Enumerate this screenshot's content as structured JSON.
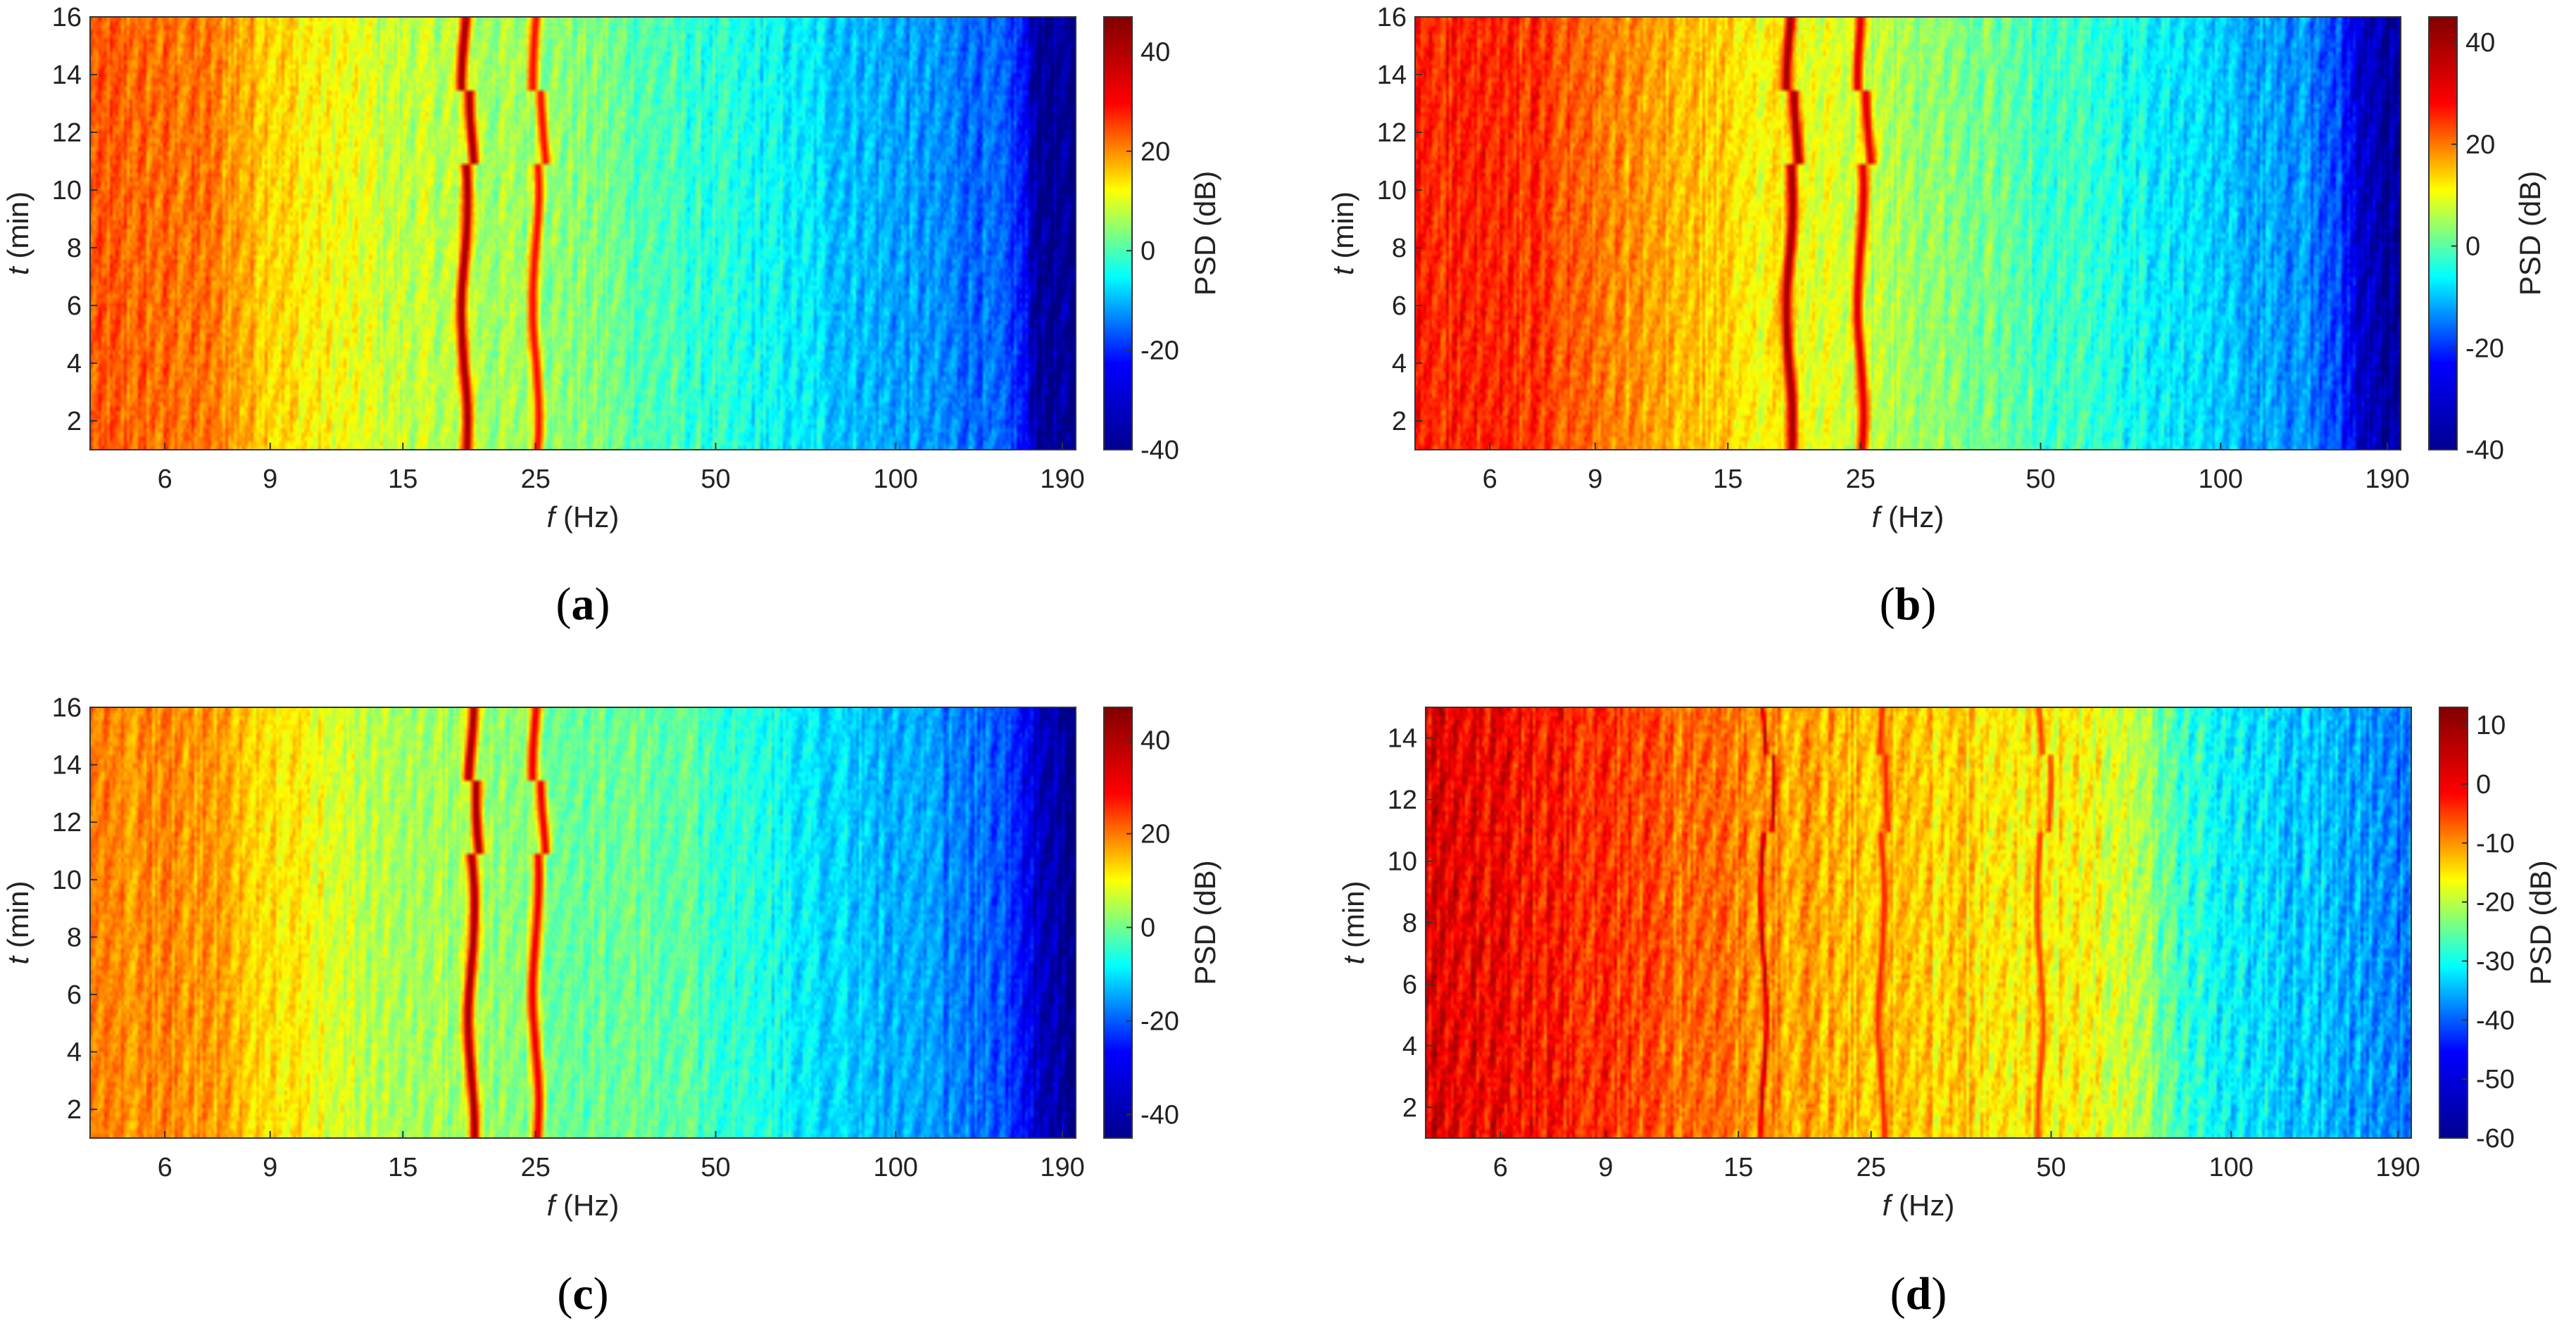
{
  "figure": {
    "colormap": "jet",
    "colormap_stops": [
      "#00008f",
      "#0000ff",
      "#00ffff",
      "#ffff00",
      "#ff0000",
      "#800000"
    ]
  },
  "chart_data": [
    {
      "type": "heatmap",
      "caption": "a",
      "xlabel_var": "f",
      "xlabel_unit": " (Hz)",
      "ylabel_var": "t",
      "ylabel_unit": " (min)",
      "colorbar_label": "PSD (dB)",
      "x_scale": "log",
      "xlim": [
        4.5,
        200
      ],
      "ylim": [
        1,
        16
      ],
      "xticks": [
        6,
        9,
        15,
        25,
        50,
        100,
        190
      ],
      "yticks": [
        2,
        4,
        6,
        8,
        10,
        12,
        14,
        16
      ],
      "clim": [
        -40,
        47
      ],
      "cticks": [
        -40,
        -20,
        0,
        20,
        40
      ],
      "base_db": [
        [
          4.5,
          28
        ],
        [
          7,
          26
        ],
        [
          10,
          16
        ],
        [
          14,
          10
        ],
        [
          18,
          8
        ],
        [
          30,
          4
        ],
        [
          45,
          -3
        ],
        [
          65,
          -8
        ],
        [
          100,
          -15
        ],
        [
          140,
          -20
        ],
        [
          160,
          -25
        ],
        [
          175,
          -38
        ],
        [
          200,
          -40
        ]
      ],
      "ridges": [
        {
          "f": 19,
          "peak_db": 45,
          "width": 0.022
        },
        {
          "f": 25,
          "peak_db": 36,
          "width": 0.022
        }
      ]
    },
    {
      "type": "heatmap",
      "caption": "b",
      "xlabel_var": "f",
      "xlabel_unit": " (Hz)",
      "ylabel_var": "t",
      "ylabel_unit": " (min)",
      "colorbar_label": "PSD (dB)",
      "x_scale": "log",
      "xlim": [
        4.5,
        200
      ],
      "ylim": [
        1,
        16
      ],
      "xticks": [
        6,
        9,
        15,
        25,
        50,
        100,
        190
      ],
      "yticks": [
        2,
        4,
        6,
        8,
        10,
        12,
        14,
        16
      ],
      "clim": [
        -40,
        45
      ],
      "cticks": [
        -40,
        -20,
        0,
        20,
        40
      ],
      "base_db": [
        [
          4.5,
          32
        ],
        [
          7,
          30
        ],
        [
          10,
          22
        ],
        [
          14,
          17
        ],
        [
          18,
          13
        ],
        [
          30,
          5
        ],
        [
          45,
          0
        ],
        [
          65,
          -6
        ],
        [
          100,
          -13
        ],
        [
          140,
          -18
        ],
        [
          160,
          -24
        ],
        [
          170,
          -34
        ],
        [
          200,
          -38
        ]
      ],
      "ridges": [
        {
          "f": 19,
          "peak_db": 43,
          "width": 0.022
        },
        {
          "f": 25,
          "peak_db": 38,
          "width": 0.022
        }
      ]
    },
    {
      "type": "heatmap",
      "caption": "c",
      "xlabel_var": "f",
      "xlabel_unit": " (Hz)",
      "ylabel_var": "t",
      "ylabel_unit": " (min)",
      "colorbar_label": "PSD (dB)",
      "x_scale": "log",
      "xlim": [
        4.5,
        200
      ],
      "ylim": [
        1,
        16
      ],
      "xticks": [
        6,
        9,
        15,
        25,
        50,
        100,
        190
      ],
      "yticks": [
        2,
        4,
        6,
        8,
        10,
        12,
        14,
        16
      ],
      "clim": [
        -45,
        47
      ],
      "cticks": [
        -40,
        -20,
        0,
        20,
        40
      ],
      "base_db": [
        [
          4.5,
          24
        ],
        [
          7,
          22
        ],
        [
          9.5,
          14
        ],
        [
          14,
          5
        ],
        [
          18,
          4
        ],
        [
          30,
          0
        ],
        [
          45,
          -3
        ],
        [
          65,
          -10
        ],
        [
          100,
          -18
        ],
        [
          140,
          -24
        ],
        [
          160,
          -28
        ],
        [
          175,
          -40
        ],
        [
          200,
          -43
        ]
      ],
      "ridges": [
        {
          "f": 19.5,
          "peak_db": 45,
          "width": 0.022
        },
        {
          "f": 25,
          "peak_db": 38,
          "width": 0.022
        }
      ]
    },
    {
      "type": "heatmap",
      "caption": "d",
      "xlabel_var": "f",
      "xlabel_unit": " (Hz)",
      "ylabel_var": "t",
      "ylabel_unit": " (min)",
      "colorbar_label": "PSD (dB)",
      "x_scale": "log",
      "xlim": [
        4.5,
        200
      ],
      "ylim": [
        1,
        15
      ],
      "xticks": [
        6,
        9,
        15,
        25,
        50,
        100,
        190
      ],
      "yticks": [
        2,
        4,
        6,
        8,
        10,
        12,
        14
      ],
      "clim": [
        -60,
        13
      ],
      "cticks": [
        -60,
        -50,
        -40,
        -30,
        -20,
        -10,
        0,
        10
      ],
      "base_db": [
        [
          4.5,
          5
        ],
        [
          8,
          2
        ],
        [
          12,
          -4
        ],
        [
          16,
          -6
        ],
        [
          25,
          -10
        ],
        [
          40,
          -12
        ],
        [
          55,
          -14
        ],
        [
          70,
          -18
        ],
        [
          80,
          -28
        ],
        [
          100,
          -33
        ],
        [
          150,
          -38
        ],
        [
          200,
          -42
        ]
      ],
      "ridges": [
        {
          "f": 16.5,
          "peak_db": 10,
          "width": 0.008
        },
        {
          "f": 26,
          "peak_db": 2,
          "width": 0.012
        },
        {
          "f": 48,
          "peak_db": 0,
          "width": 0.012
        }
      ]
    }
  ]
}
